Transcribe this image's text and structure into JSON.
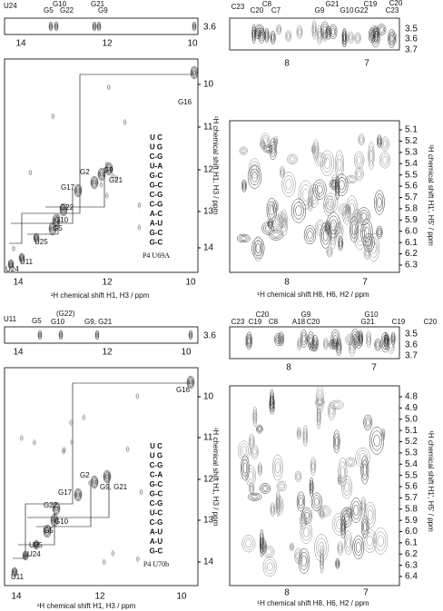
{
  "top_left": {
    "strip": {
      "labels": [
        "U24",
        "G5",
        "G10",
        "G22",
        "G21",
        "G9"
      ],
      "y_tick": "3.6",
      "x_ticks": [
        "14",
        "12",
        "10"
      ]
    },
    "spectrum": {
      "x_ticks": [
        "14",
        "12",
        "10"
      ],
      "y_ticks": [
        "10",
        "11",
        "12",
        "13",
        "14"
      ],
      "x_label": "¹H chemical shift H1, H3 / ppm",
      "y_label": "¹H chemical shift H1, H3 / ppm",
      "peak_labels": [
        "G16",
        "G9",
        "G2",
        "G21",
        "G17",
        "G22",
        "G10",
        "G5",
        "U25",
        "U11",
        "U24"
      ]
    },
    "structure": {
      "rows": [
        "U C",
        "U   G",
        "C-G",
        "U-A",
        "G-C",
        "G-C",
        "C-G",
        "C-G",
        "A-C",
        "A-U",
        "G-C",
        "G-C"
      ],
      "name": "P4 U69A"
    }
  },
  "top_right": {
    "strip": {
      "labels": [
        "C23",
        "C20",
        "C8",
        "C7",
        "G9",
        "G21",
        "G10",
        "G22",
        "C19",
        "C20",
        "C23"
      ],
      "y_ticks": [
        "3.5",
        "3.6",
        "3.7"
      ],
      "x_ticks": [
        "8",
        "7"
      ]
    },
    "spectrum": {
      "x_ticks": [
        "8",
        "7"
      ],
      "y_ticks": [
        "5.1",
        "5.2",
        "5.3",
        "5.4",
        "5.5",
        "5.6",
        "5.7",
        "5.8",
        "5.9",
        "6.0",
        "6.1",
        "6.2",
        "6.3"
      ],
      "x_label": "¹H chemical shift H8, H6, H2 / ppm",
      "y_label": "¹H chemical shift H1', H5' / ppm"
    }
  },
  "bottom_left": {
    "strip": {
      "labels": [
        "U11",
        "G5",
        "(G22)",
        "G10",
        "G9, G21"
      ],
      "y_tick": "3.6",
      "x_ticks": [
        "14",
        "12",
        "10"
      ]
    },
    "spectrum": {
      "x_ticks": [
        "14",
        "12",
        "10"
      ],
      "y_ticks": [
        "10",
        "11",
        "12",
        "13",
        "14"
      ],
      "x_label": "¹H chemical shift H1, H3 / ppm",
      "y_label": "¹H chemical shift H1, H3 / ppm",
      "peak_labels": [
        "G16",
        "G2",
        "G9, G21",
        "G17",
        "G22",
        "G10",
        "G5",
        "U25",
        "U24",
        "U11"
      ]
    },
    "structure": {
      "rows": [
        "U C",
        "U   G",
        "C-G",
        "C-A",
        "G-C",
        "G-C",
        "C-G",
        "U-C",
        "C-G",
        "A-U",
        "A-U",
        "G-C"
      ],
      "name": "P4 U70b"
    }
  },
  "bottom_right": {
    "strip": {
      "labels": [
        "C20",
        "C23",
        "C19",
        "C8",
        "G9",
        "A18",
        "C20",
        "G10",
        "G21",
        "C19",
        "C20"
      ],
      "y_ticks": [
        "3.5",
        "3.6",
        "3.7"
      ],
      "x_ticks": [
        "8",
        "7"
      ]
    },
    "spectrum": {
      "x_ticks": [
        "8",
        "7"
      ],
      "y_ticks": [
        "4.8",
        "4.9",
        "5.0",
        "5.1",
        "5.2",
        "5.3",
        "5.4",
        "5.5",
        "5.6",
        "5.7",
        "5.8",
        "5.9",
        "6.0",
        "6.1",
        "6.2",
        "6.3",
        "6.4"
      ],
      "x_label": "¹H chemical shift H8, H6, H2 / ppm",
      "y_label": "¹H chemical shift H1', H5' / ppm"
    }
  }
}
